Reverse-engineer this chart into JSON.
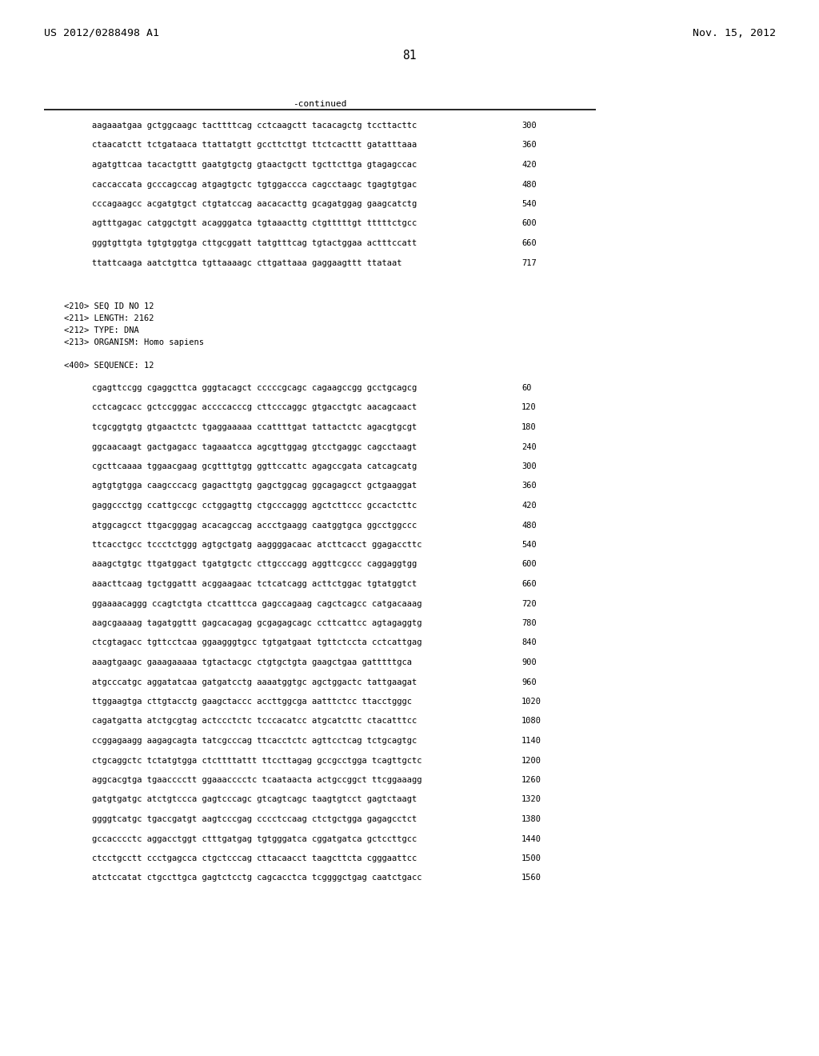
{
  "header_left": "US 2012/0288498 A1",
  "header_right": "Nov. 15, 2012",
  "page_number": "81",
  "continued_label": "-continued",
  "background_color": "#ffffff",
  "text_color": "#000000",
  "font_size": 7.5,
  "header_font_size": 9.5,
  "page_num_font_size": 10.5,
  "sequence_lines_part1": [
    [
      "aagaaatgaa gctggcaagc tacttttcag cctcaagctt tacacagctg tccttacttc",
      "300"
    ],
    [
      "ctaacatctt tctgataaca ttattatgtt gccttcttgt ttctcacttt gatatttaaa",
      "360"
    ],
    [
      "agatgttcaa tacactgttt gaatgtgctg gtaactgctt tgcttcttga gtagagccac",
      "420"
    ],
    [
      "caccaccata gcccagccag atgagtgctc tgtggaccca cagcctaagc tgagtgtgac",
      "480"
    ],
    [
      "cccagaagcc acgatgtgct ctgtatccag aacacacttg gcagatggag gaagcatctg",
      "540"
    ],
    [
      "agtttgagac catggctgtt acagggatca tgtaaacttg ctgtttttgt tttttctgcc",
      "600"
    ],
    [
      "gggtgttgta tgtgtggtga cttgcggatt tatgtttcag tgtactggaa actttccatt",
      "660"
    ],
    [
      "ttattcaaga aatctgttca tgttaaaagc cttgattaaa gaggaagttt ttataat",
      "717"
    ]
  ],
  "metadata_lines": [
    "<210> SEQ ID NO 12",
    "<211> LENGTH: 2162",
    "<212> TYPE: DNA",
    "<213> ORGANISM: Homo sapiens"
  ],
  "sequence_label": "<400> SEQUENCE: 12",
  "sequence_lines_part2": [
    [
      "cgagttccgg cgaggcttca gggtacagct cccccgcagc cagaagccgg gcctgcagcg",
      "60"
    ],
    [
      "cctcagcacc gctccgggac accccacccg cttcccaggc gtgacctgtc aacagcaact",
      "120"
    ],
    [
      "tcgcggtgtg gtgaactctc tgaggaaaaa ccattttgat tattactctc agacgtgcgt",
      "180"
    ],
    [
      "ggcaacaagt gactgagacc tagaaatcca agcgttggag gtcctgaggc cagcctaagt",
      "240"
    ],
    [
      "cgcttcaaaa tggaacgaag gcgtttgtgg ggttccattc agagccgata catcagcatg",
      "300"
    ],
    [
      "agtgtgtgga caagcccacg gagacttgtg gagctggcag ggcagagcct gctgaaggat",
      "360"
    ],
    [
      "gaggccctgg ccattgccgc cctggagttg ctgcccaggg agctcttccc gccactcttc",
      "420"
    ],
    [
      "atggcagcct ttgacgggag acacagccag accctgaagg caatggtgca ggcctggccc",
      "480"
    ],
    [
      "ttcacctgcc tccctctggg agtgctgatg aaggggacaac atcttcacct ggagaccttc",
      "540"
    ],
    [
      "aaagctgtgc ttgatggact tgatgtgctc cttgcccagg aggttcgccc caggaggtgg",
      "600"
    ],
    [
      "aaacttcaag tgctggattt acggaagaac tctcatcagg acttctggac tgtatggtct",
      "660"
    ],
    [
      "ggaaaacaggg ccagtctgta ctcatttcca gagccagaag cagctcagcc catgacaaag",
      "720"
    ],
    [
      "aagcgaaaag tagatggttt gagcacagag gcgagagcagc ccttcattcc agtagaggtg",
      "780"
    ],
    [
      "ctcgtagacc tgttcctcaa ggaagggtgcc tgtgatgaat tgttctccta cctcattgag",
      "840"
    ],
    [
      "aaagtgaagc gaaagaaaaa tgtactacgc ctgtgctgta gaagctgaa gatttttgca",
      "900"
    ],
    [
      "atgcccatgc aggatatcaa gatgatcctg aaaatggtgc agctggactc tattgaagat",
      "960"
    ],
    [
      "ttggaagtga cttgtacctg gaagctaccc accttggcga aatttctcc ttacctgggc",
      "1020"
    ],
    [
      "cagatgatta atctgcgtag actccctctc tcccacatcc atgcatcttc ctacatttcc",
      "1080"
    ],
    [
      "ccggagaagg aagagcagta tatcgcccag ttcacctctc agttcctcag tctgcagtgc",
      "1140"
    ],
    [
      "ctgcaggctc tctatgtgga ctcttttattt ttccttagag gccgcctgga tcagttgctc",
      "1200"
    ],
    [
      "aggcacgtga tgaacccctt ggaaacccctc tcaataacta actgccggct ttcggaaagg",
      "1260"
    ],
    [
      "gatgtgatgc atctgtccca gagtcccagc gtcagtcagc taagtgtcct gagtctaagt",
      "1320"
    ],
    [
      "ggggtcatgc tgaccgatgt aagtcccgag cccctccaag ctctgctgga gagagcctct",
      "1380"
    ],
    [
      "gccacccctc aggacctggt ctttgatgag tgtgggatca cggatgatca gctccttgcc",
      "1440"
    ],
    [
      "ctcctgcctt ccctgagcca ctgctcccag cttacaacct taagcttcta cgggaattcc",
      "1500"
    ],
    [
      "atctccatat ctgccttgca gagtctcctg cagcacctca tcggggctgag caatctgacc",
      "1560"
    ]
  ]
}
